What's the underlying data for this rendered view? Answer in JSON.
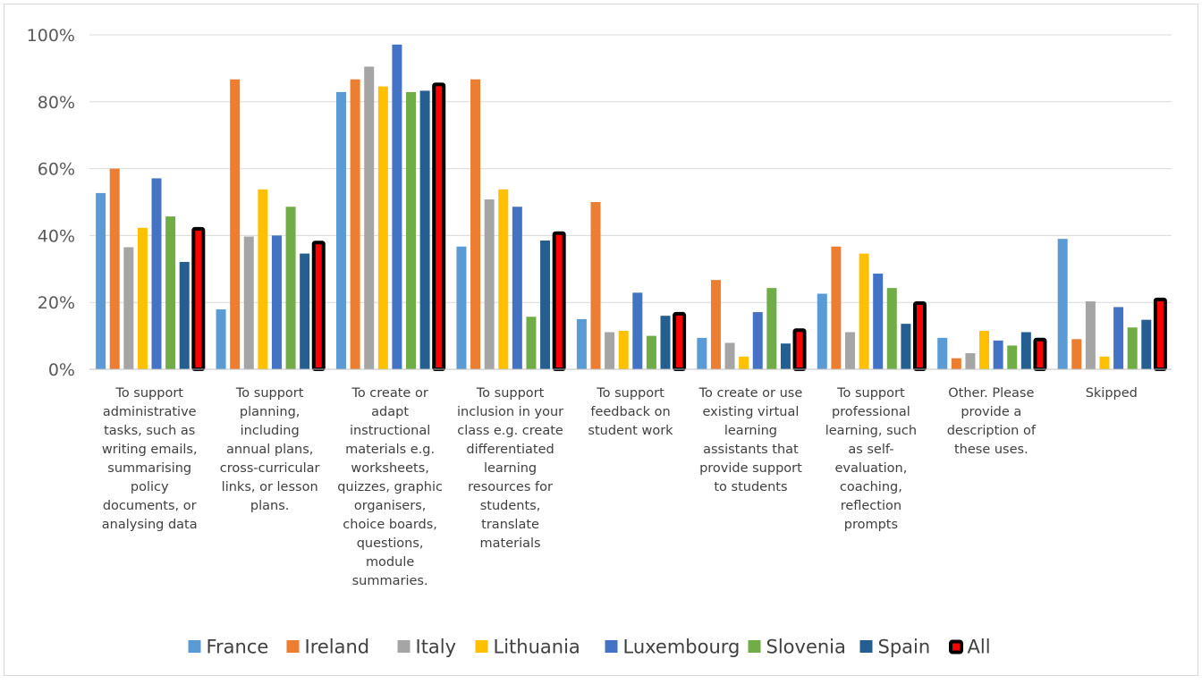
{
  "chart_data": {
    "type": "bar",
    "title": "",
    "xlabel": "",
    "ylabel": "",
    "ylim": [
      0,
      100
    ],
    "y_ticks": [
      "0%",
      "20%",
      "40%",
      "60%",
      "80%",
      "100%"
    ],
    "grid": true,
    "legend_position": "bottom",
    "categories": [
      "To support administrative tasks, such as writing emails, summarising policy documents, or analysing data",
      "To support planning, including annual plans, cross-curricular links, or lesson plans.",
      "To create or adapt instructional materials e.g. worksheets, quizzes, graphic organisers, choice boards, questions, module summaries.",
      "To support inclusion in your class e.g. create differentiated learning resources for students, translate materials",
      "To support feedback on student work",
      "To create or use existing virtual learning assistants that provide support to students",
      "To support professional learning, such as self-evaluation, coaching, reflection prompts",
      "Other. Please provide a description of these uses.",
      "Skipped"
    ],
    "category_lines": [
      [
        "To support",
        "administrative",
        "tasks, such as",
        "writing emails,",
        "summarising",
        "policy",
        "documents, or",
        "analysing data"
      ],
      [
        "To support",
        "planning,",
        "including",
        "annual plans,",
        "cross-curricular",
        "links, or lesson",
        "plans."
      ],
      [
        "To create or",
        "adapt",
        "instructional",
        "materials e.g.",
        "worksheets,",
        "quizzes, graphic",
        "organisers,",
        "choice boards,",
        "questions,",
        "module",
        "summaries."
      ],
      [
        "To support",
        "inclusion in your",
        "class e.g. create",
        "differentiated",
        "learning",
        "resources for",
        "students,",
        "translate",
        "materials"
      ],
      [
        "To support",
        "feedback on",
        "student work"
      ],
      [
        "To create or use",
        "existing virtual",
        "learning",
        "assistants that",
        "provide support",
        "to students"
      ],
      [
        "To support",
        "professional",
        "learning, such",
        "as self-",
        "evaluation,",
        "coaching,",
        "reflection",
        "prompts"
      ],
      [
        "Other. Please",
        "provide a",
        "description of",
        "these uses."
      ],
      [
        "Skipped"
      ]
    ],
    "series": [
      {
        "name": "France",
        "color": "#5b9bd5",
        "values": [
          52.7,
          17.9,
          82.9,
          36.7,
          15.0,
          9.4,
          22.6,
          9.4,
          39.0
        ]
      },
      {
        "name": "Ireland",
        "color": "#ed7d31",
        "values": [
          60.0,
          86.7,
          86.7,
          86.7,
          50.0,
          26.7,
          36.7,
          3.3,
          9.0
        ]
      },
      {
        "name": "Italy",
        "color": "#a5a5a5",
        "values": [
          36.5,
          39.7,
          90.5,
          50.8,
          11.1,
          7.9,
          11.1,
          4.8,
          20.3
        ]
      },
      {
        "name": "Lithuania",
        "color": "#ffc000",
        "values": [
          42.3,
          53.8,
          84.6,
          53.8,
          11.5,
          3.8,
          34.6,
          11.5,
          3.8
        ]
      },
      {
        "name": "Luxembourg",
        "color": "#4472c4",
        "values": [
          57.1,
          40.0,
          97.1,
          48.6,
          22.9,
          17.1,
          28.6,
          8.6,
          18.6
        ]
      },
      {
        "name": "Slovenia",
        "color": "#70ad47",
        "values": [
          45.7,
          48.6,
          82.9,
          15.7,
          10.0,
          24.3,
          24.3,
          7.1,
          12.5
        ]
      },
      {
        "name": "Spain",
        "color": "#255e91",
        "values": [
          32.1,
          34.6,
          83.3,
          38.5,
          16.0,
          7.7,
          13.6,
          11.1,
          14.8
        ]
      },
      {
        "name": "All",
        "color": "#000000",
        "inner_color": "#ff0000",
        "values": [
          42.4,
          38.3,
          85.6,
          41.1,
          17.0,
          12.1,
          20.2,
          9.3,
          21.3
        ]
      }
    ]
  }
}
